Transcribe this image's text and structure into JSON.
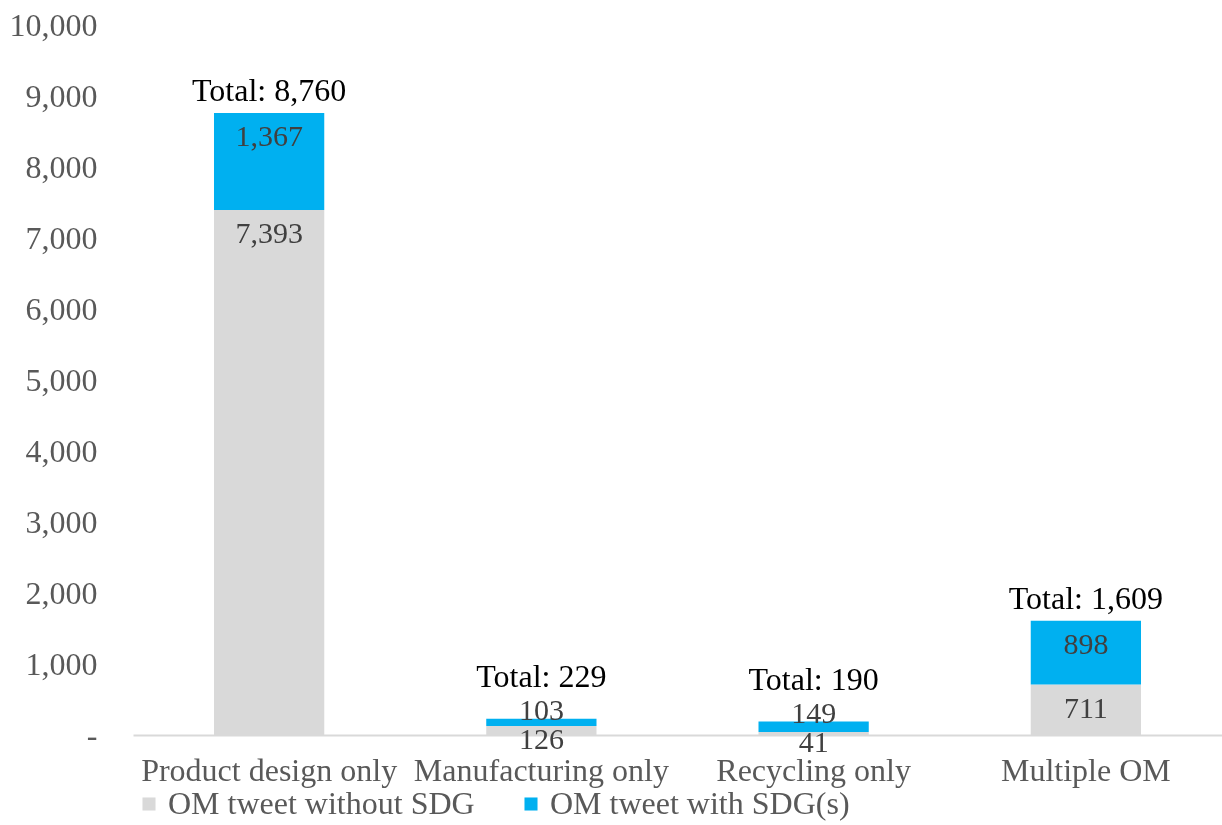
{
  "chart_data": {
    "type": "bar",
    "stacked": true,
    "categories": [
      "Product design only",
      "Manufacturing only",
      "Recycling only",
      "Multiple OM"
    ],
    "series": [
      {
        "name": "OM tweet without SDG",
        "color": "#d9d9d9",
        "values": [
          7393,
          126,
          41,
          711
        ],
        "value_labels": [
          "7,393",
          "126",
          "41",
          "711"
        ]
      },
      {
        "name": "OM tweet with SDG(s)",
        "color": "#00b0f0",
        "values": [
          1367,
          103,
          149,
          898
        ],
        "value_labels": [
          "1,367",
          "103",
          "149",
          "898"
        ]
      }
    ],
    "ylim": [
      0,
      10000
    ],
    "yticks": [
      {
        "value": 0,
        "label": "-"
      },
      {
        "value": 1000,
        "label": "1,000"
      },
      {
        "value": 2000,
        "label": "2,000"
      },
      {
        "value": 3000,
        "label": "3,000"
      },
      {
        "value": 4000,
        "label": "4,000"
      },
      {
        "value": 5000,
        "label": "5,000"
      },
      {
        "value": 6000,
        "label": "6,000"
      },
      {
        "value": 7000,
        "label": "7,000"
      },
      {
        "value": 8000,
        "label": "8,000"
      },
      {
        "value": 9000,
        "label": "9,000"
      },
      {
        "value": 10000,
        "label": "10,000"
      }
    ],
    "totals": [
      "Total: 8,760",
      "Total: 229",
      "Total: 190",
      "Total: 1,609"
    ],
    "legend": "bottom"
  }
}
